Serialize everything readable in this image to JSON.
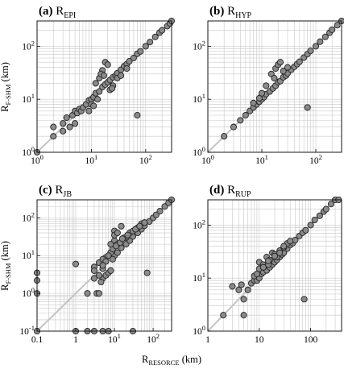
{
  "chart_data": [
    {
      "type": "scatter",
      "title_prefix": "(a)",
      "title_main": "R",
      "title_sub": "EPI",
      "xscale": "log",
      "yscale": "log",
      "xlim": [
        1,
        300
      ],
      "ylim": [
        1,
        300
      ],
      "x_ticks": [
        {
          "value": 1,
          "base": "10",
          "exp": "0"
        },
        {
          "value": 10,
          "base": "10",
          "exp": "1"
        },
        {
          "value": 100,
          "base": "10",
          "exp": "2"
        }
      ],
      "y_ticks": [
        {
          "value": 1,
          "base": "10",
          "exp": "0"
        },
        {
          "value": 10,
          "base": "10",
          "exp": "1"
        },
        {
          "value": 100,
          "base": "10",
          "exp": "2"
        }
      ],
      "reference_line": "1:1",
      "grid": true,
      "x": [
        1.0,
        2.0,
        2.0,
        3.0,
        3.5,
        4.5,
        5.0,
        5.5,
        6.0,
        6.5,
        7.0,
        8.0,
        9.0,
        10.0,
        11.0,
        12.0,
        14.0,
        16.0,
        18.0,
        20.0,
        22.0,
        25.0,
        28.0,
        30.0,
        35.0,
        40.0,
        45.0,
        50.0,
        60.0,
        70.0,
        80.0,
        100.0,
        120.0,
        150.0,
        180.0,
        200.0,
        250.0,
        280.0,
        300.0,
        12.0,
        14.0,
        16.0,
        18.0,
        20.0,
        15.0,
        17.0,
        22.0,
        25.0,
        30.0,
        3.0,
        5.0,
        9.0,
        10.0,
        11.0,
        13.0,
        24.0,
        35.0,
        45.0,
        70.0,
        4.0
      ],
      "y": [
        1.0,
        2.0,
        3.0,
        3.5,
        4.5,
        5.0,
        6.0,
        5.5,
        6.5,
        6.0,
        7.0,
        8.0,
        9.5,
        10.0,
        11.0,
        13.0,
        14.0,
        17.0,
        19.0,
        21.0,
        23.0,
        26.0,
        28.0,
        31.0,
        36.0,
        42.0,
        46.0,
        52.0,
        60.0,
        72.0,
        80.0,
        100.0,
        120.0,
        150.0,
        180.0,
        200.0,
        240.0,
        270.0,
        300.0,
        20.0,
        25.0,
        35.0,
        50.0,
        45.0,
        30.0,
        28.0,
        15.0,
        18.0,
        25.0,
        2.5,
        3.5,
        6.0,
        8.0,
        7.5,
        10.0,
        16.0,
        28.0,
        38.0,
        5.0,
        3.0
      ]
    },
    {
      "type": "scatter",
      "title_prefix": "(b)",
      "title_main": "R",
      "title_sub": "HYP",
      "xscale": "log",
      "yscale": "log",
      "xlim": [
        1,
        300
      ],
      "ylim": [
        1,
        300
      ],
      "x_ticks": [
        {
          "value": 1,
          "base": "10",
          "exp": "0"
        },
        {
          "value": 10,
          "base": "10",
          "exp": "1"
        },
        {
          "value": 100,
          "base": "10",
          "exp": "2"
        }
      ],
      "y_ticks": [
        {
          "value": 1,
          "base": "10",
          "exp": "0"
        },
        {
          "value": 10,
          "base": "10",
          "exp": "1"
        },
        {
          "value": 100,
          "base": "10",
          "exp": "2"
        }
      ],
      "reference_line": "1:1",
      "grid": true,
      "x": [
        2.0,
        3.0,
        4.0,
        5.0,
        6.0,
        7.0,
        8.0,
        9.0,
        10.0,
        11.0,
        12.0,
        14.0,
        16.0,
        18.0,
        20.0,
        22.0,
        25.0,
        28.0,
        30.0,
        35.0,
        40.0,
        45.0,
        50.0,
        60.0,
        70.0,
        80.0,
        100.0,
        120.0,
        150.0,
        180.0,
        200.0,
        250.0,
        300.0,
        15.0,
        18.0,
        20.0,
        22.0,
        25.0,
        12.0,
        30.0,
        7.0,
        9.0,
        10.0,
        70.0,
        17.0
      ],
      "y": [
        2.0,
        3.0,
        4.0,
        5.0,
        6.0,
        7.0,
        8.0,
        9.0,
        10.0,
        11.0,
        12.5,
        14.0,
        16.0,
        18.0,
        21.0,
        22.0,
        26.0,
        28.0,
        31.0,
        36.0,
        41.0,
        46.0,
        51.0,
        61.0,
        71.0,
        82.0,
        100.0,
        122.0,
        150.0,
        180.0,
        205.0,
        250.0,
        300.0,
        30.0,
        38.0,
        45.0,
        50.0,
        34.0,
        18.0,
        40.0,
        8.5,
        10.5,
        13.0,
        7.0,
        25.0
      ]
    },
    {
      "type": "scatter",
      "title_prefix": "(c)",
      "title_main": "R",
      "title_sub": "JB",
      "xscale": "log",
      "yscale": "log",
      "xlim": [
        0.1,
        300
      ],
      "ylim": [
        0.1,
        300
      ],
      "x_ticks": [
        {
          "value": 0.1,
          "base": "0.1"
        },
        {
          "value": 1,
          "base": "1"
        },
        {
          "value": 10,
          "base": "10",
          "exp": "1"
        },
        {
          "value": 100,
          "base": "10",
          "exp": "2"
        }
      ],
      "y_ticks": [
        {
          "value": 0.1,
          "base": "10",
          "exp": "-1"
        },
        {
          "value": 1,
          "base": "10",
          "exp": "0"
        },
        {
          "value": 10,
          "base": "10",
          "exp": "1"
        },
        {
          "value": 100,
          "base": "10",
          "exp": "2"
        }
      ],
      "reference_line": "1:1",
      "grid": true,
      "x": [
        0.1,
        0.1,
        0.1,
        0.1,
        1.0,
        2.0,
        3.0,
        5.0,
        7.0,
        30.0,
        1.0,
        3.0,
        5.0,
        3.5,
        4.0,
        5.0,
        6.0,
        7.0,
        8.0,
        5.0,
        6.0,
        10.0,
        12.0,
        15.0,
        20.0,
        25.0,
        30.0,
        40.0,
        50.0,
        60.0,
        80.0,
        100.0,
        120.0,
        150.0,
        200.0,
        250.0,
        300.0,
        10.0,
        15.0,
        20.0,
        10.0,
        70.0,
        2.0,
        3.0,
        4.0,
        4.0,
        5.0,
        6.0,
        8.0,
        9.0,
        12.0,
        18.0,
        25.0,
        30.0,
        40.0,
        50.0,
        4.5,
        3.0,
        5.0,
        7.0,
        9.0,
        11.0,
        14.0,
        16.0,
        22.0,
        35.0,
        45.0,
        60.0,
        8.0,
        10.0,
        12.0
      ],
      "y": [
        3.5,
        2.2,
        1.0,
        0.1,
        0.1,
        0.1,
        0.1,
        0.1,
        0.1,
        0.1,
        6.0,
        5.0,
        4.5,
        1.0,
        1.0,
        2.5,
        3.0,
        3.5,
        4.0,
        7.0,
        9.0,
        10.0,
        12.0,
        16.0,
        20.0,
        25.0,
        32.0,
        40.0,
        50.0,
        62.0,
        80.0,
        100.0,
        120.0,
        150.0,
        200.0,
        250.0,
        300.0,
        45.0,
        60.0,
        30.0,
        25.0,
        3.5,
        1.0,
        2.5,
        3.0,
        6.5,
        8.0,
        7.0,
        12.0,
        15.0,
        20.0,
        30.0,
        40.0,
        45.0,
        55.0,
        70.0,
        2.0,
        4.0,
        5.5,
        10.0,
        8.0,
        18.0,
        22.0,
        28.0,
        35.0,
        50.0,
        60.0,
        75.0,
        20.0,
        35.0,
        40.0
      ]
    },
    {
      "type": "scatter",
      "title_prefix": "(d)",
      "title_main": "R",
      "title_sub": "RUP",
      "xscale": "log",
      "yscale": "log",
      "xlim": [
        1,
        400
      ],
      "ylim": [
        1,
        300
      ],
      "x_ticks": [
        {
          "value": 1,
          "base": "1"
        },
        {
          "value": 10,
          "base": "10"
        },
        {
          "value": 100,
          "base": "100"
        }
      ],
      "y_ticks": [
        {
          "value": 1,
          "base": "10",
          "exp": "0"
        },
        {
          "value": 10,
          "base": "10",
          "exp": "1"
        },
        {
          "value": 100,
          "base": "10",
          "exp": "2"
        }
      ],
      "reference_line": "1:1",
      "grid": true,
      "x": [
        2.0,
        3.0,
        4.0,
        4.5,
        5.0,
        5.0,
        6.0,
        7.0,
        8.0,
        9.0,
        10.0,
        11.0,
        12.0,
        14.0,
        16.0,
        18.0,
        20.0,
        22.0,
        25.0,
        28.0,
        30.0,
        35.0,
        40.0,
        45.0,
        50.0,
        60.0,
        70.0,
        80.0,
        100.0,
        120.0,
        150.0,
        180.0,
        200.0,
        250.0,
        300.0,
        350.0,
        10.0,
        12.0,
        14.0,
        16.0,
        18.0,
        20.0,
        22.0,
        25.0,
        30.0,
        35.0,
        40.0,
        10.0,
        12.0,
        15.0,
        75.0,
        8.0,
        9.0,
        12.0,
        15.0,
        20.0,
        25.0,
        30.0
      ],
      "y": [
        2.0,
        7.0,
        6.0,
        7.5,
        4.0,
        2.0,
        6.0,
        8.0,
        9.0,
        9.0,
        10.0,
        12.0,
        13.0,
        14.0,
        16.0,
        18.0,
        20.0,
        22.0,
        25.0,
        28.0,
        30.0,
        36.0,
        42.0,
        46.0,
        52.0,
        62.0,
        72.0,
        80.0,
        100.0,
        125.0,
        150.0,
        180.0,
        200.0,
        250.0,
        300.0,
        330.0,
        20.0,
        18.0,
        25.0,
        22.0,
        30.0,
        28.0,
        25.0,
        33.0,
        38.0,
        45.0,
        50.0,
        15.0,
        16.0,
        18.0,
        4.0,
        11.0,
        12.0,
        16.0,
        21.0,
        26.0,
        30.0,
        40.0
      ]
    }
  ],
  "axis_titles": {
    "y_main": "R",
    "y_sub": "F-SHM",
    "y_unit": " (km)",
    "x_main": "R",
    "x_sub": "RESORCE",
    "x_unit": " (km)"
  }
}
